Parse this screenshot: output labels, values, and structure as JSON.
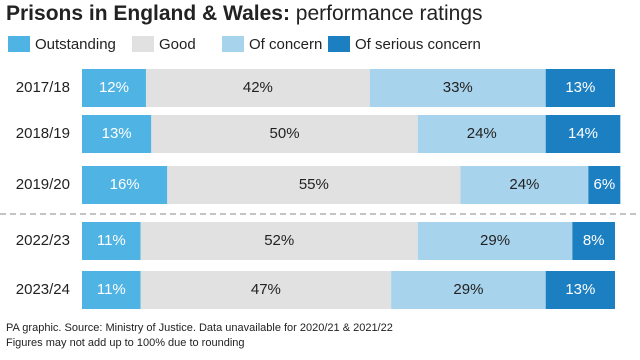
{
  "chart_data": {
    "type": "stacked-bar-horizontal",
    "title": "Prisons in England & Wales:",
    "subtitle": "performance ratings",
    "categories": [
      "2017/18",
      "2018/19",
      "2019/20",
      "2022/23",
      "2023/24"
    ],
    "series": [
      {
        "name": "Outstanding",
        "color": "#4fb3e3",
        "text_color": "#ffffff",
        "values": [
          12,
          13,
          16,
          11,
          11
        ],
        "value_labels": [
          "12%",
          "13%",
          "16%",
          "11%",
          "11%"
        ]
      },
      {
        "name": "Good",
        "color": "#e1e1e1",
        "text_color": "#222222",
        "values": [
          42,
          50,
          55,
          52,
          47
        ],
        "value_labels": [
          "42%",
          "50%",
          "55%",
          "52%",
          "47%"
        ]
      },
      {
        "name": "Of concern",
        "color": "#a8d3ec",
        "text_color": "#222222",
        "values": [
          33,
          24,
          24,
          29,
          29
        ],
        "value_labels": [
          "33%",
          "24%",
          "24%",
          "29%",
          "29%"
        ]
      },
      {
        "name": "Of serious concern",
        "color": "#1c7fc2",
        "text_color": "#ffffff",
        "values": [
          13,
          14,
          6,
          8,
          13
        ],
        "value_labels": [
          "13%",
          "14%",
          "6%",
          "8%",
          "13%"
        ]
      }
    ],
    "xlim": [
      0,
      100
    ],
    "notes": [
      "PA graphic. Source: Ministry of Justice. Data unavailable for 2020/21 & 2021/22",
      "Figures may not add up to 100% due to rounding"
    ]
  }
}
